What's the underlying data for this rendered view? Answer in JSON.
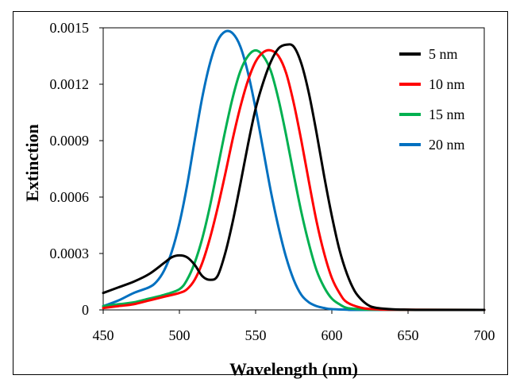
{
  "chart_data": {
    "type": "line",
    "xlabel": "Wavelength (nm)",
    "ylabel": "Extinction",
    "xlim": [
      450,
      700
    ],
    "ylim": [
      0,
      0.0015
    ],
    "xticks": [
      450,
      500,
      550,
      600,
      650,
      700
    ],
    "xtick_labels": [
      "450",
      "500",
      "550",
      "600",
      "650",
      "700"
    ],
    "yticks": [
      0,
      0.0003,
      0.0006,
      0.0009,
      0.0012,
      0.0015
    ],
    "ytick_labels": [
      "0",
      "0.0003",
      "0.0006",
      "0.0009",
      "0.0012",
      "0.0015"
    ],
    "grid": false,
    "legend_position": "top-right",
    "series": [
      {
        "name": "5  nm",
        "color": "#000000",
        "x": [
          450,
          460,
          470,
          480,
          490,
          495,
          500,
          505,
          510,
          515,
          520,
          525,
          530,
          535,
          540,
          545,
          550,
          555,
          560,
          565,
          570,
          575,
          580,
          585,
          590,
          595,
          600,
          605,
          610,
          615,
          620,
          625,
          630,
          640,
          650,
          660,
          700
        ],
        "y": [
          9e-05,
          0.00012,
          0.00015,
          0.00019,
          0.00025,
          0.00028,
          0.00029,
          0.00028,
          0.00024,
          0.00018,
          0.00016,
          0.00018,
          0.0003,
          0.00047,
          0.00067,
          0.00088,
          0.00107,
          0.00121,
          0.00132,
          0.00139,
          0.00141,
          0.0014,
          0.00131,
          0.00115,
          0.00094,
          0.00071,
          0.0005,
          0.00032,
          0.00019,
          0.0001,
          5e-05,
          2e-05,
          1e-05,
          3e-06,
          1e-06,
          0,
          0
        ]
      },
      {
        "name": "10 nm",
        "color": "#ff0000",
        "x": [
          450,
          460,
          470,
          480,
          490,
          500,
          505,
          510,
          515,
          520,
          525,
          530,
          535,
          540,
          545,
          550,
          555,
          560,
          565,
          570,
          575,
          580,
          585,
          590,
          595,
          600,
          605,
          610,
          620,
          630,
          640,
          700
        ],
        "y": [
          1e-05,
          2e-05,
          3e-05,
          5e-05,
          7e-05,
          9e-05,
          0.00011,
          0.00016,
          0.00025,
          0.00038,
          0.00054,
          0.00072,
          0.00091,
          0.00108,
          0.00122,
          0.00132,
          0.00137,
          0.00138,
          0.00135,
          0.00126,
          0.0011,
          0.0009,
          0.00068,
          0.00047,
          0.0003,
          0.00017,
          9e-05,
          4e-05,
          1e-05,
          3e-06,
          1e-06,
          0
        ]
      },
      {
        "name": "15 nm",
        "color": "#00b050",
        "x": [
          450,
          460,
          470,
          480,
          490,
          500,
          505,
          510,
          515,
          520,
          525,
          530,
          535,
          540,
          545,
          550,
          555,
          560,
          565,
          570,
          575,
          580,
          585,
          590,
          595,
          600,
          605,
          610,
          620,
          630,
          700
        ],
        "y": [
          2e-05,
          3e-05,
          4e-05,
          6e-05,
          8e-05,
          0.00011,
          0.00016,
          0.00025,
          0.00038,
          0.00055,
          0.00075,
          0.00095,
          0.00113,
          0.00127,
          0.00135,
          0.00138,
          0.00135,
          0.00127,
          0.00112,
          0.00093,
          0.00072,
          0.00052,
          0.00035,
          0.00021,
          0.00012,
          6e-05,
          3e-05,
          1e-05,
          3e-06,
          1e-06,
          0
        ]
      },
      {
        "name": "20 nm",
        "color": "#0070c0",
        "x": [
          450,
          460,
          470,
          480,
          485,
          490,
          495,
          500,
          505,
          510,
          515,
          520,
          525,
          530,
          535,
          540,
          545,
          550,
          555,
          560,
          565,
          570,
          575,
          580,
          585,
          590,
          595,
          600,
          610,
          620,
          700
        ],
        "y": [
          2e-05,
          5e-05,
          9e-05,
          0.00012,
          0.00015,
          0.00021,
          0.00031,
          0.00046,
          0.00066,
          0.0009,
          0.00113,
          0.00131,
          0.00143,
          0.00148,
          0.00147,
          0.0014,
          0.00126,
          0.00107,
          0.00085,
          0.00063,
          0.00044,
          0.00028,
          0.00016,
          8e-05,
          4e-05,
          2e-05,
          1e-05,
          4e-06,
          1e-06,
          0,
          0
        ]
      }
    ]
  }
}
